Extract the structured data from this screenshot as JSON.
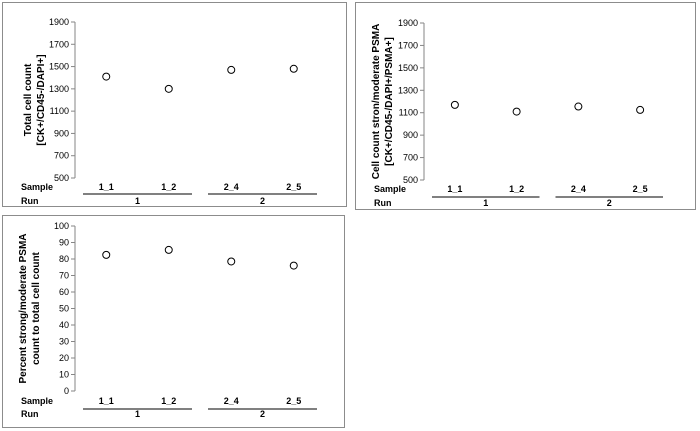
{
  "chart_data": [
    {
      "type": "scatter",
      "ylabel_lines": [
        "Total cell count",
        "[CK+/CD45-/DAPI+]"
      ],
      "ylim": [
        500,
        1900
      ],
      "yticks": [
        500,
        700,
        900,
        1100,
        1300,
        1500,
        1700,
        1900
      ],
      "categories": [
        "1_1",
        "1_2",
        "2_4",
        "2_5"
      ],
      "values": [
        1410,
        1300,
        1470,
        1480
      ],
      "groups": [
        {
          "label": "1",
          "members": [
            "1_1",
            "1_2"
          ]
        },
        {
          "label": "2",
          "members": [
            "2_4",
            "2_5"
          ]
        }
      ],
      "row_labels": {
        "sample": "Sample",
        "run": "Run"
      }
    },
    {
      "type": "scatter",
      "ylabel_lines": [
        "Cell count stron/moderate PSMA",
        "[CK+/CD45-/DAPI+/PSMA+]"
      ],
      "ylim": [
        500,
        1900
      ],
      "yticks": [
        500,
        700,
        900,
        1100,
        1300,
        1500,
        1700,
        1900
      ],
      "categories": [
        "1_1",
        "1_2",
        "2_4",
        "2_5"
      ],
      "values": [
        1170,
        1110,
        1155,
        1125
      ],
      "groups": [
        {
          "label": "1",
          "members": [
            "1_1",
            "1_2"
          ]
        },
        {
          "label": "2",
          "members": [
            "2_4",
            "2_5"
          ]
        }
      ],
      "row_labels": {
        "sample": "Sample",
        "run": "Run"
      }
    },
    {
      "type": "scatter",
      "ylabel_lines": [
        "Percent strong/moderate PSMA",
        "count to total cell count"
      ],
      "ylim": [
        0,
        100
      ],
      "yticks": [
        0,
        10,
        20,
        30,
        40,
        50,
        60,
        70,
        80,
        90,
        100
      ],
      "categories": [
        "1_1",
        "1_2",
        "2_4",
        "2_5"
      ],
      "values": [
        82.5,
        85.5,
        78.5,
        76
      ],
      "groups": [
        {
          "label": "1",
          "members": [
            "1_1",
            "1_2"
          ]
        },
        {
          "label": "2",
          "members": [
            "2_4",
            "2_5"
          ]
        }
      ],
      "row_labels": {
        "sample": "Sample",
        "run": "Run"
      }
    }
  ]
}
